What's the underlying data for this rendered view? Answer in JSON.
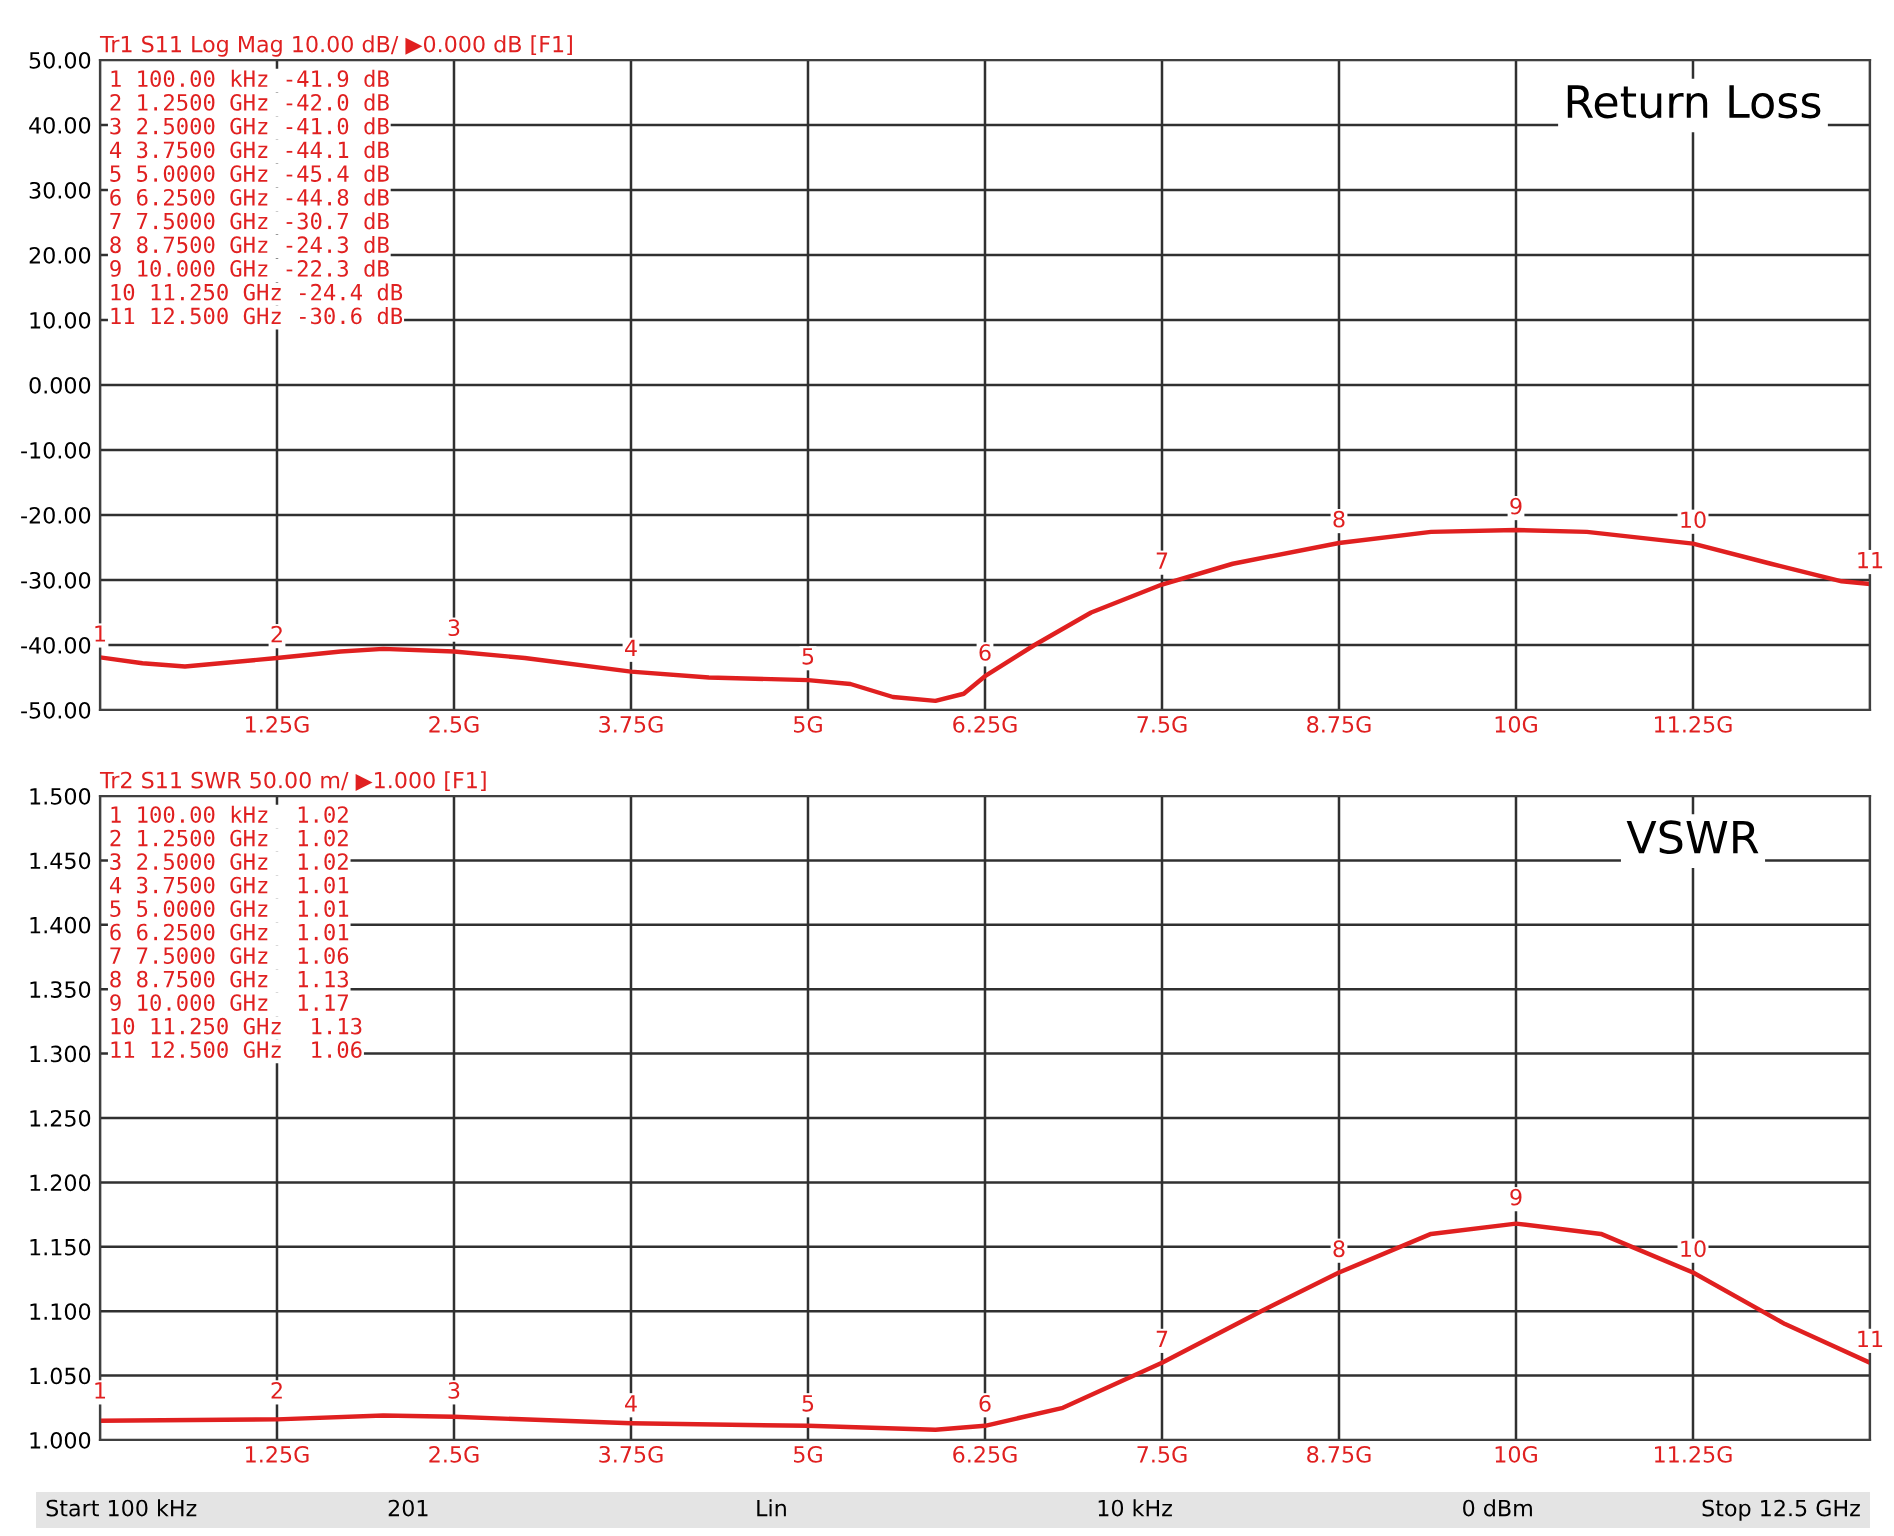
{
  "chart_data": [
    {
      "type": "line",
      "title": "Return Loss",
      "subtitle": "Tr1 S11 Log Mag 10.00 dB/ ▶0.000 dB [F1]",
      "grid": true,
      "legend": false,
      "marker": "none",
      "line_style": "solid",
      "xlim": [
        0.0001,
        12.5
      ],
      "ylim": [
        -50,
        50
      ],
      "xticks": [
        {
          "value": 0.0001,
          "label": null
        },
        {
          "value": 1.25,
          "label": "1.25G"
        },
        {
          "value": 2.5,
          "label": "2.5G"
        },
        {
          "value": 3.75,
          "label": "3.75G"
        },
        {
          "value": 5,
          "label": "5G"
        },
        {
          "value": 6.25,
          "label": "6.25G"
        },
        {
          "value": 7.5,
          "label": "7.5G"
        },
        {
          "value": 8.75,
          "label": "8.75G"
        },
        {
          "value": 10,
          "label": "10G"
        },
        {
          "value": 11.25,
          "label": "11.25G"
        },
        {
          "value": 12.5,
          "label": null
        }
      ],
      "yticks": [
        {
          "value": 50,
          "label": "50.00"
        },
        {
          "value": 40,
          "label": "40.00"
        },
        {
          "value": 30,
          "label": "30.00"
        },
        {
          "value": 20,
          "label": "20.00"
        },
        {
          "value": 10,
          "label": "10.00"
        },
        {
          "value": 0,
          "label": "0.000"
        },
        {
          "value": -10,
          "label": "-10.00"
        },
        {
          "value": -20,
          "label": "-20.00"
        },
        {
          "value": -30,
          "label": "-30.00"
        },
        {
          "value": -40,
          "label": "-40.00"
        },
        {
          "value": -50,
          "label": "-50.00"
        }
      ],
      "series": [
        {
          "color": "#e02020",
          "x": [
            0.0001,
            0.3,
            0.6,
            1.25,
            1.7,
            2.0,
            2.5,
            3.0,
            3.75,
            4.3,
            5.0,
            5.3,
            5.6,
            5.9,
            6.1,
            6.25,
            6.6,
            7.0,
            7.5,
            8.0,
            8.75,
            9.4,
            10.0,
            10.5,
            11.25,
            11.8,
            12.3,
            12.5
          ],
          "values": [
            -41.9,
            -42.8,
            -43.3,
            -42.0,
            -41.0,
            -40.6,
            -41.0,
            -42.0,
            -44.1,
            -45.0,
            -45.4,
            -46.0,
            -48.0,
            -48.6,
            -47.5,
            -44.8,
            -40.0,
            -35.0,
            -30.7,
            -27.5,
            -24.3,
            -22.6,
            -22.3,
            -22.6,
            -24.4,
            -27.5,
            -30.2,
            -30.6
          ]
        }
      ],
      "annotations": [
        "1 100.00 kHz -41.9 dB",
        "2 1.2500 GHz -42.0 dB",
        "3 2.5000 GHz -41.0 dB",
        "4 3.7500 GHz -44.1 dB",
        "5 5.0000 GHz -45.4 dB",
        "6 6.2500 GHz -44.8 dB",
        "7 7.5000 GHz -30.7 dB",
        "8 8.7500 GHz -24.3 dB",
        "9 10.000 GHz -22.3 dB",
        "10 11.250 GHz -24.4 dB",
        "11 12.500 GHz -30.6 dB",
        {
          "text": "1",
          "x": 0.0001,
          "y": -41.9
        },
        {
          "text": "2",
          "x": 1.25,
          "y": -42.0
        },
        {
          "text": "3",
          "x": 2.5,
          "y": -41.0
        },
        {
          "text": "4",
          "x": 3.75,
          "y": -44.1
        },
        {
          "text": "5",
          "x": 5.0,
          "y": -45.4
        },
        {
          "text": "6",
          "x": 6.25,
          "y": -44.8
        },
        {
          "text": "7",
          "x": 7.5,
          "y": -30.7
        },
        {
          "text": "8",
          "x": 8.75,
          "y": -24.3
        },
        {
          "text": "9",
          "x": 10.0,
          "y": -22.3
        },
        {
          "text": "10",
          "x": 11.25,
          "y": -24.4
        },
        {
          "text": "11",
          "x": 12.5,
          "y": -30.6
        }
      ]
    },
    {
      "type": "line",
      "title": "VSWR",
      "subtitle": "Tr2 S11 SWR 50.00 m/ ▶1.000 [F1]",
      "grid": true,
      "legend": false,
      "marker": "none",
      "line_style": "solid",
      "xlim": [
        0.0001,
        12.5
      ],
      "ylim": [
        1.0,
        1.5
      ],
      "xticks": [
        {
          "value": 0.0001,
          "label": null
        },
        {
          "value": 1.25,
          "label": "1.25G"
        },
        {
          "value": 2.5,
          "label": "2.5G"
        },
        {
          "value": 3.75,
          "label": "3.75G"
        },
        {
          "value": 5,
          "label": "5G"
        },
        {
          "value": 6.25,
          "label": "6.25G"
        },
        {
          "value": 7.5,
          "label": "7.5G"
        },
        {
          "value": 8.75,
          "label": "8.75G"
        },
        {
          "value": 10,
          "label": "10G"
        },
        {
          "value": 11.25,
          "label": "11.25G"
        },
        {
          "value": 12.5,
          "label": null
        }
      ],
      "yticks": [
        {
          "value": 1.5,
          "label": "1.500"
        },
        {
          "value": 1.45,
          "label": "1.450"
        },
        {
          "value": 1.4,
          "label": "1.400"
        },
        {
          "value": 1.35,
          "label": "1.350"
        },
        {
          "value": 1.3,
          "label": "1.300"
        },
        {
          "value": 1.25,
          "label": "1.250"
        },
        {
          "value": 1.2,
          "label": "1.200"
        },
        {
          "value": 1.15,
          "label": "1.150"
        },
        {
          "value": 1.1,
          "label": "1.100"
        },
        {
          "value": 1.05,
          "label": "1.050"
        },
        {
          "value": 1.0,
          "label": "1.000"
        }
      ],
      "series": [
        {
          "color": "#e02020",
          "x": [
            0.0001,
            1.25,
            2.0,
            2.5,
            3.75,
            5.0,
            5.9,
            6.25,
            6.8,
            7.5,
            8.2,
            8.75,
            9.4,
            10.0,
            10.6,
            11.25,
            11.9,
            12.5
          ],
          "values": [
            1.015,
            1.016,
            1.019,
            1.018,
            1.013,
            1.011,
            1.008,
            1.011,
            1.025,
            1.06,
            1.1,
            1.13,
            1.16,
            1.168,
            1.16,
            1.13,
            1.09,
            1.06
          ]
        }
      ],
      "annotations": [
        "1 100.00 kHz  1.02",
        "2 1.2500 GHz  1.02",
        "3 2.5000 GHz  1.02",
        "4 3.7500 GHz  1.01",
        "5 5.0000 GHz  1.01",
        "6 6.2500 GHz  1.01",
        "7 7.5000 GHz  1.06",
        "8 8.7500 GHz  1.13",
        "9 10.000 GHz  1.17",
        "10 11.250 GHz  1.13",
        "11 12.500 GHz  1.06",
        {
          "text": "1",
          "x": 0.0001,
          "y": 1.02
        },
        {
          "text": "2",
          "x": 1.25,
          "y": 1.02
        },
        {
          "text": "3",
          "x": 2.5,
          "y": 1.02
        },
        {
          "text": "4",
          "x": 3.75,
          "y": 1.01
        },
        {
          "text": "5",
          "x": 5.0,
          "y": 1.01
        },
        {
          "text": "6",
          "x": 6.25,
          "y": 1.01
        },
        {
          "text": "7",
          "x": 7.5,
          "y": 1.06
        },
        {
          "text": "8",
          "x": 8.75,
          "y": 1.13
        },
        {
          "text": "9",
          "x": 10.0,
          "y": 1.17
        },
        {
          "text": "10",
          "x": 11.25,
          "y": 1.13
        },
        {
          "text": "11",
          "x": 12.5,
          "y": 1.06
        }
      ]
    },
    {
      "type": "other",
      "annotations": [
        "Start 100 kHz",
        "201",
        "Lin",
        "10 kHz",
        "0 dBm",
        "Stop 12.5 GHz"
      ]
    }
  ]
}
